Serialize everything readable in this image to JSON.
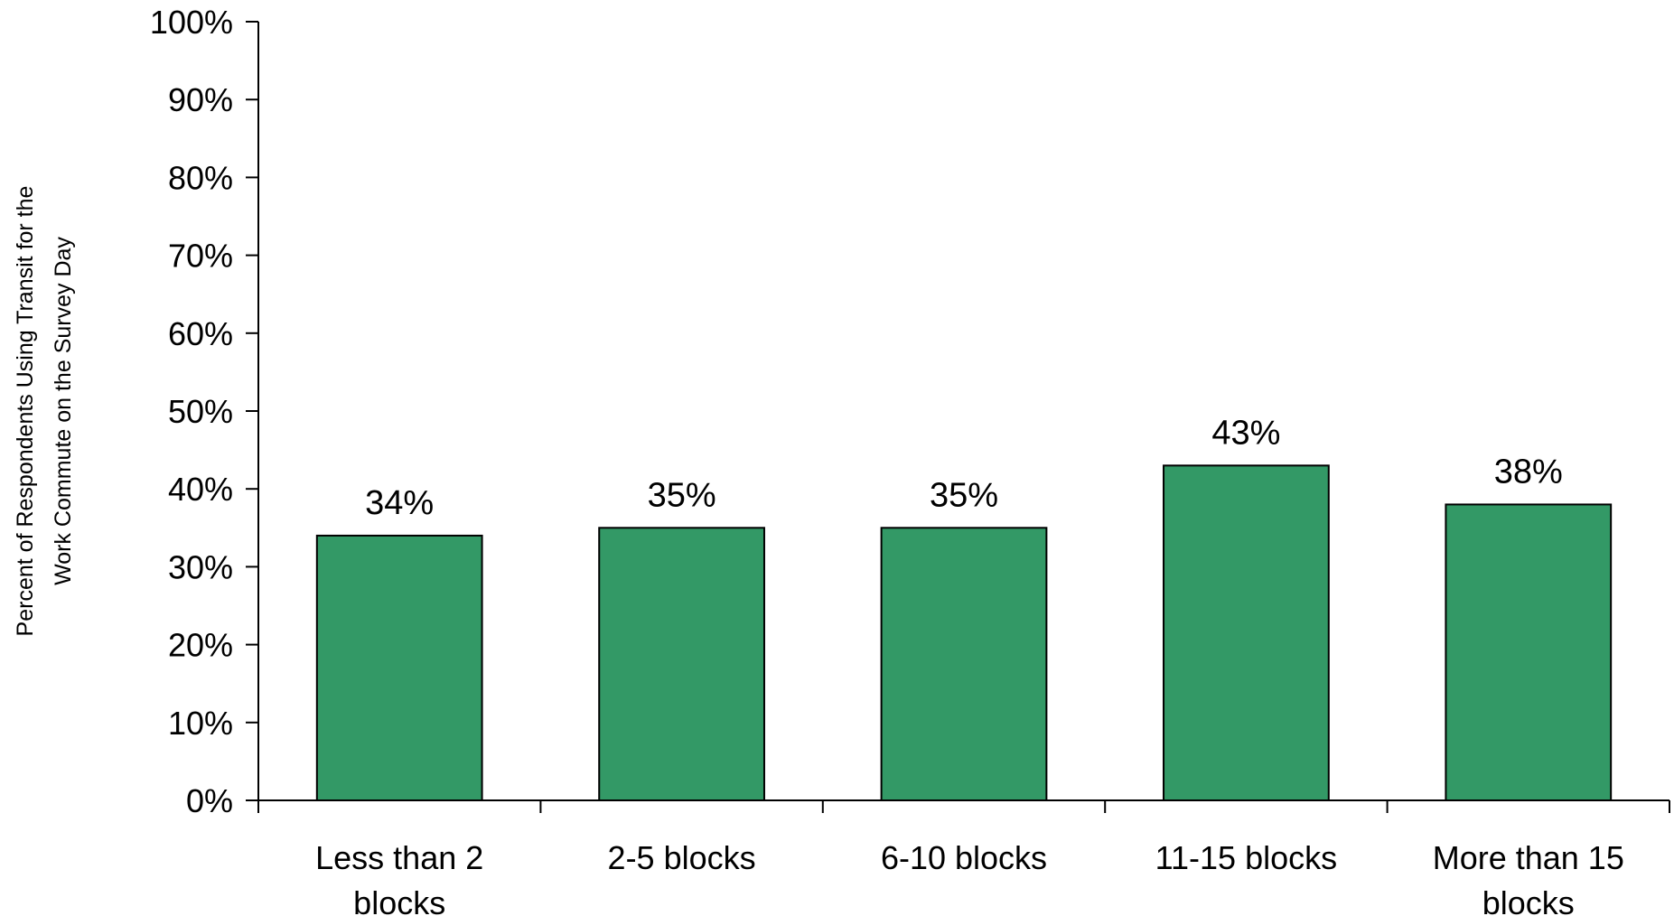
{
  "chart_data": {
    "type": "bar",
    "title": "",
    "xlabel": "",
    "ylabel_lines": [
      "Percent of Respondents Using Transit for the",
      "Work Commute on the Survey Day"
    ],
    "categories": [
      [
        "Less than 2",
        "blocks"
      ],
      [
        "2-5 blocks"
      ],
      [
        "6-10 blocks"
      ],
      [
        "11-15 blocks"
      ],
      [
        "More than 15",
        "blocks"
      ]
    ],
    "values": [
      34,
      35,
      35,
      43,
      38
    ],
    "data_labels": [
      "34%",
      "35%",
      "35%",
      "43%",
      "38%"
    ],
    "ylim": [
      0,
      100
    ],
    "y_ticks": [
      0,
      10,
      20,
      30,
      40,
      50,
      60,
      70,
      80,
      90,
      100
    ],
    "y_tick_labels": [
      "0%",
      "10%",
      "20%",
      "30%",
      "40%",
      "50%",
      "60%",
      "70%",
      "80%",
      "90%",
      "100%"
    ],
    "grid": false,
    "legend": "none",
    "colors": {
      "bar_fill": "#339966",
      "bar_stroke": "#000000",
      "axis": "#000000"
    }
  }
}
